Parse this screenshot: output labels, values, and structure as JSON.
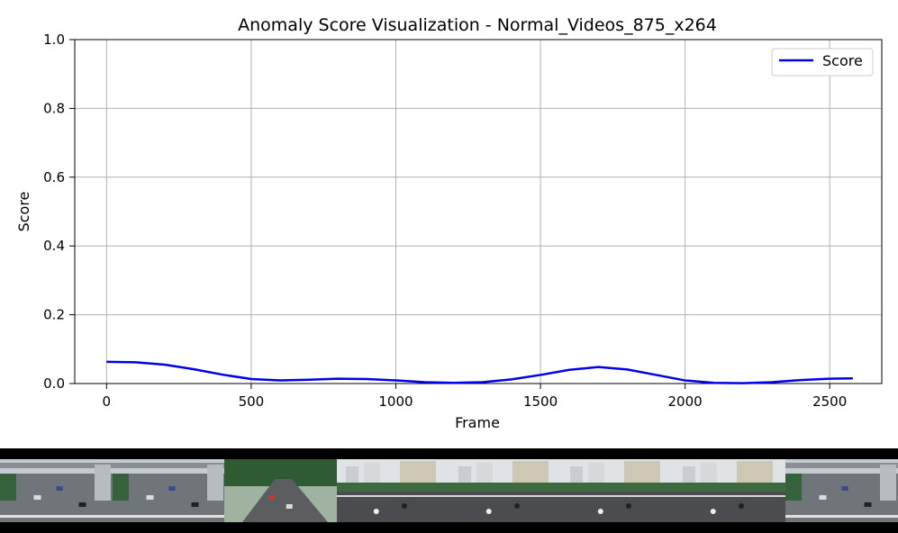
{
  "chart_data": {
    "type": "line",
    "title": "Anomaly Score Visualization - Normal_Videos_875_x264",
    "xlabel": "Frame",
    "ylabel": "Score",
    "xlim": [
      -110,
      2680
    ],
    "ylim": [
      0.0,
      1.0
    ],
    "xticks": [
      "0",
      "500",
      "1000",
      "1500",
      "2000",
      "2500"
    ],
    "xtick_values": [
      0,
      500,
      1000,
      1500,
      2000,
      2500
    ],
    "yticks": [
      "0.0",
      "0.2",
      "0.4",
      "0.6",
      "0.8",
      "1.0"
    ],
    "ytick_values": [
      0.0,
      0.2,
      0.4,
      0.6,
      0.8,
      1.0
    ],
    "grid": true,
    "legend_position": "top-right",
    "series": [
      {
        "name": "Score",
        "color": "#0000e6",
        "x": [
          0,
          100,
          200,
          300,
          400,
          500,
          600,
          700,
          800,
          900,
          1000,
          1100,
          1200,
          1300,
          1400,
          1500,
          1600,
          1700,
          1800,
          1900,
          2000,
          2100,
          2200,
          2300,
          2400,
          2500,
          2580
        ],
        "y": [
          0.063,
          0.062,
          0.055,
          0.042,
          0.026,
          0.013,
          0.009,
          0.011,
          0.014,
          0.013,
          0.009,
          0.004,
          0.002,
          0.004,
          0.012,
          0.025,
          0.04,
          0.048,
          0.041,
          0.025,
          0.009,
          0.002,
          0.001,
          0.004,
          0.01,
          0.014,
          0.015
        ]
      }
    ]
  },
  "film_strip": {
    "frames": [
      {
        "scene": "wide-intersection"
      },
      {
        "scene": "wide-intersection"
      },
      {
        "scene": "street-trees"
      },
      {
        "scene": "overpass-buildings"
      },
      {
        "scene": "overpass-buildings"
      },
      {
        "scene": "overpass-buildings"
      },
      {
        "scene": "overpass-buildings"
      },
      {
        "scene": "wide-intersection"
      }
    ]
  }
}
